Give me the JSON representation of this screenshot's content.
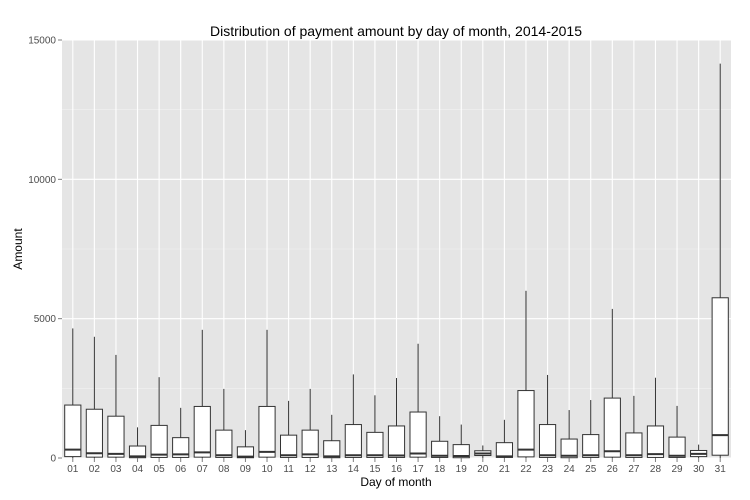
{
  "chart_data": {
    "type": "boxplot",
    "title": "Distribution of payment amount by day of month, 2014-2015",
    "xlabel": "Day of month",
    "ylabel": "Amount",
    "ylim": [
      0,
      15000
    ],
    "yticks": [
      0,
      5000,
      10000,
      15000
    ],
    "grid": true,
    "legend": "none",
    "colors": {
      "panel": "#e5e5e5",
      "grid_major": "#ffffff",
      "grid_minor": "#f2f2f2",
      "box_fill": "#ffffff",
      "box_stroke": "#333333"
    },
    "categories": [
      "01",
      "02",
      "03",
      "04",
      "05",
      "06",
      "07",
      "08",
      "09",
      "10",
      "11",
      "12",
      "13",
      "14",
      "15",
      "16",
      "17",
      "18",
      "19",
      "20",
      "21",
      "22",
      "23",
      "24",
      "25",
      "26",
      "27",
      "28",
      "29",
      "30",
      "31"
    ],
    "boxes": [
      {
        "lower": 0,
        "q1": 50,
        "median": 300,
        "q3": 1900,
        "upper": 4650
      },
      {
        "lower": 0,
        "q1": 30,
        "median": 170,
        "q3": 1750,
        "upper": 4350
      },
      {
        "lower": 0,
        "q1": 30,
        "median": 150,
        "q3": 1500,
        "upper": 3700
      },
      {
        "lower": 0,
        "q1": 10,
        "median": 60,
        "q3": 430,
        "upper": 1100
      },
      {
        "lower": 0,
        "q1": 20,
        "median": 120,
        "q3": 1170,
        "upper": 2900
      },
      {
        "lower": 0,
        "q1": 20,
        "median": 130,
        "q3": 730,
        "upper": 1800
      },
      {
        "lower": 0,
        "q1": 30,
        "median": 200,
        "q3": 1850,
        "upper": 4600
      },
      {
        "lower": 0,
        "q1": 20,
        "median": 100,
        "q3": 1000,
        "upper": 2480
      },
      {
        "lower": 0,
        "q1": 10,
        "median": 50,
        "q3": 400,
        "upper": 1000
      },
      {
        "lower": 0,
        "q1": 30,
        "median": 220,
        "q3": 1850,
        "upper": 4600
      },
      {
        "lower": 0,
        "q1": 20,
        "median": 100,
        "q3": 820,
        "upper": 2050
      },
      {
        "lower": 0,
        "q1": 20,
        "median": 130,
        "q3": 1000,
        "upper": 2480
      },
      {
        "lower": 0,
        "q1": 10,
        "median": 60,
        "q3": 620,
        "upper": 1550
      },
      {
        "lower": 0,
        "q1": 20,
        "median": 100,
        "q3": 1200,
        "upper": 3000
      },
      {
        "lower": 0,
        "q1": 20,
        "median": 100,
        "q3": 920,
        "upper": 2250
      },
      {
        "lower": 0,
        "q1": 20,
        "median": 90,
        "q3": 1150,
        "upper": 2870
      },
      {
        "lower": 0,
        "q1": 30,
        "median": 160,
        "q3": 1650,
        "upper": 4100
      },
      {
        "lower": 0,
        "q1": 20,
        "median": 80,
        "q3": 600,
        "upper": 1500
      },
      {
        "lower": 0,
        "q1": 10,
        "median": 70,
        "q3": 480,
        "upper": 1200
      },
      {
        "lower": 0,
        "q1": 90,
        "median": 160,
        "q3": 260,
        "upper": 450
      },
      {
        "lower": 0,
        "q1": 20,
        "median": 60,
        "q3": 550,
        "upper": 1370
      },
      {
        "lower": 0,
        "q1": 40,
        "median": 300,
        "q3": 2420,
        "upper": 6000
      },
      {
        "lower": 0,
        "q1": 20,
        "median": 100,
        "q3": 1200,
        "upper": 2980
      },
      {
        "lower": 0,
        "q1": 10,
        "median": 80,
        "q3": 680,
        "upper": 1720
      },
      {
        "lower": 0,
        "q1": 20,
        "median": 100,
        "q3": 840,
        "upper": 2080
      },
      {
        "lower": 0,
        "q1": 30,
        "median": 240,
        "q3": 2150,
        "upper": 5350
      },
      {
        "lower": 0,
        "q1": 20,
        "median": 100,
        "q3": 900,
        "upper": 2230
      },
      {
        "lower": 0,
        "q1": 20,
        "median": 140,
        "q3": 1150,
        "upper": 2880
      },
      {
        "lower": 0,
        "q1": 20,
        "median": 80,
        "q3": 750,
        "upper": 1870
      },
      {
        "lower": 0,
        "q1": 50,
        "median": 150,
        "q3": 270,
        "upper": 480
      },
      {
        "lower": 0,
        "q1": 100,
        "median": 820,
        "q3": 5750,
        "upper": 14150
      }
    ]
  }
}
